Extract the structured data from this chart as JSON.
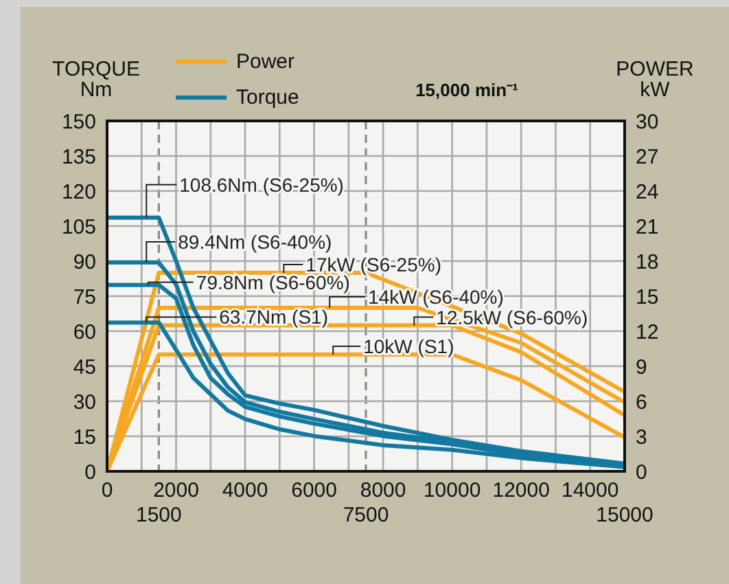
{
  "chart_data": {
    "type": "line",
    "title": "15,000 min⁻¹",
    "ylabel": "TORQUE\nNm",
    "y2label": "POWER\nkW",
    "xlim": [
      0,
      15000
    ],
    "xticks": [
      0,
      {
        "value": 1000,
        "label": null
      },
      2000,
      {
        "value": 3000,
        "label": null
      },
      4000,
      {
        "value": 5000,
        "label": null
      },
      6000,
      {
        "value": 7000,
        "label": null
      },
      8000,
      {
        "value": 9000,
        "label": null
      },
      10000,
      {
        "value": 11000,
        "label": null
      },
      12000,
      {
        "value": 13000,
        "label": null
      },
      14000
    ],
    "x2lim": [
      0,
      15000
    ],
    "x2ticks": [
      1500,
      7500,
      15000
    ],
    "ylim": [
      0,
      150
    ],
    "yticks": [
      0,
      15,
      30,
      45,
      60,
      75,
      90,
      105,
      120,
      135,
      150
    ],
    "y2lim": [
      0,
      30
    ],
    "y2ticks": [
      0,
      3,
      6,
      9,
      12,
      15,
      18,
      21,
      24,
      27,
      30
    ],
    "grid": true,
    "legend": "top left",
    "line_style": "solid",
    "series": [
      {
        "name": "Power",
        "color": "#f7a823",
        "axis": "y2",
        "x": [
          0,
          1500,
          7500,
          12000,
          15000
        ],
        "values": [
          0,
          17,
          17,
          11.8,
          6.8
        ]
      },
      {
        "color": "#f7a823",
        "axis": "y2",
        "x": [
          0,
          1500,
          9000,
          12000,
          15000
        ],
        "values": [
          0,
          14,
          14,
          11,
          5.9
        ]
      },
      {
        "color": "#f7a823",
        "axis": "y2",
        "x": [
          0,
          1500,
          10000,
          12000,
          15000
        ],
        "values": [
          0,
          12.5,
          12.5,
          10.2,
          4.8
        ]
      },
      {
        "color": "#f7a823",
        "axis": "y2",
        "x": [
          0,
          1500,
          10000,
          12000,
          15000
        ],
        "values": [
          0,
          10,
          10,
          7.8,
          2.9
        ]
      },
      {
        "name": "Torque",
        "color": "#1479a0",
        "axis": "y",
        "x": [
          0,
          1500,
          2000,
          2500,
          3000,
          3500,
          4000,
          5000,
          6000,
          8000,
          10000,
          12000,
          15000
        ],
        "values": [
          108.6,
          108.6,
          90,
          70,
          56,
          42,
          32.5,
          29,
          26.3,
          19.4,
          13.5,
          8.6,
          3.3
        ]
      },
      {
        "color": "#1479a0",
        "axis": "y",
        "x": [
          0,
          1500,
          2000,
          2500,
          3000,
          3500,
          4000,
          5000,
          6000,
          8000,
          10000,
          12000,
          15000
        ],
        "values": [
          89.4,
          89.4,
          80,
          60,
          46,
          36,
          29.6,
          25.5,
          22.4,
          16.5,
          12.5,
          7.6,
          2.7
        ]
      },
      {
        "color": "#1479a0",
        "axis": "y",
        "x": [
          0,
          1500,
          2000,
          2500,
          3000,
          3500,
          4000,
          5000,
          6000,
          8000,
          10000,
          12000,
          15000
        ],
        "values": [
          79.8,
          79.8,
          74,
          54,
          40,
          33,
          27.6,
          23.5,
          20.4,
          15.1,
          11.6,
          7,
          2.2
        ]
      },
      {
        "color": "#1479a0",
        "axis": "y",
        "x": [
          0,
          1500,
          2000,
          2500,
          3000,
          3500,
          4000,
          5000,
          6000,
          8000,
          10000,
          12000,
          15000
        ],
        "values": [
          63.7,
          63.7,
          52,
          40,
          33,
          26,
          22.4,
          18,
          15.1,
          11.2,
          9.2,
          5.7,
          1.8
        ]
      }
    ],
    "annotations": [
      {
        "text": "108.6Nm (S6-25%)",
        "x": 1140,
        "y": 108.6
      },
      {
        "text": "89.4Nm (S6-40%)",
        "x": 1140,
        "y": 89.4
      },
      {
        "text": "79.8Nm (S6-60%)",
        "x": 1190,
        "y": 79.8
      },
      {
        "text": "63.7Nm (S1)",
        "x": 1140,
        "y": 63.7
      },
      {
        "text": "17kW (S6-25%)",
        "x": 5120,
        "y": 85
      },
      {
        "text": "14kW (S6-40%)",
        "x": 6450,
        "y": 70
      },
      {
        "text": "12.5kW (S6-60%)",
        "x": 8900,
        "y": 62.5
      },
      {
        "text": "10kW (S1)",
        "x": 6550,
        "y": 50
      }
    ]
  }
}
